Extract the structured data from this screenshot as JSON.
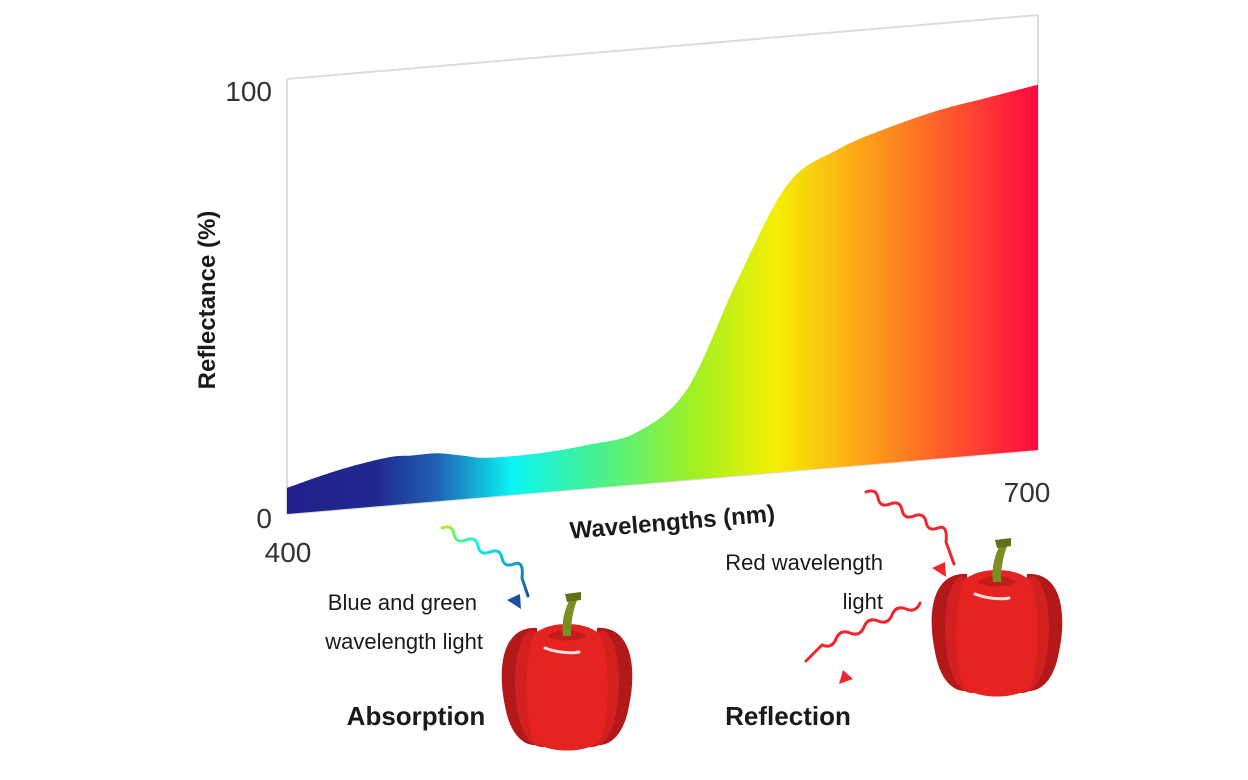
{
  "chart_data": {
    "type": "area",
    "xlabel": "Wavelengths (nm)",
    "ylabel": "Reflectance (%)",
    "xlim": [
      400,
      700
    ],
    "ylim": [
      0,
      100
    ],
    "x_ticks": [
      "400",
      "700"
    ],
    "y_ticks": [
      "0",
      "100"
    ],
    "grid": false,
    "series": [
      {
        "x": [
          400,
          420,
          440,
          450,
          460,
          470,
          480,
          500,
          520,
          540,
          560,
          580,
          600,
          620,
          640,
          660,
          680,
          700
        ],
        "values": [
          6,
          9,
          11,
          11,
          11,
          10,
          9,
          9,
          10,
          12,
          21,
          45,
          66,
          73,
          77,
          80,
          82,
          84
        ]
      }
    ],
    "fill_gradient": [
      {
        "offset": 0.0,
        "color": "#241f8e"
      },
      {
        "offset": 0.12,
        "color": "#1f2a8f"
      },
      {
        "offset": 0.2,
        "color": "#1f62b3"
      },
      {
        "offset": 0.3,
        "color": "#0cf5f2"
      },
      {
        "offset": 0.42,
        "color": "#4cf08a"
      },
      {
        "offset": 0.55,
        "color": "#a6f01f"
      },
      {
        "offset": 0.65,
        "color": "#f5ef06"
      },
      {
        "offset": 0.78,
        "color": "#fd9b1a"
      },
      {
        "offset": 1.0,
        "color": "#ff0842"
      }
    ]
  },
  "annotations": {
    "blue_green_line1": "Blue and green",
    "blue_green_line2": "wavelength light",
    "red_line1": "Red wavelength",
    "red_line2": "light",
    "absorption": "Absorption",
    "reflection": "Reflection"
  },
  "colors": {
    "frame": "#dcdcdc",
    "pepper_body": "#e52320",
    "pepper_dark": "#b4191a",
    "pepper_stem": "#7a8f23",
    "red_arrow": "#f0262d",
    "blue_arrow": "#1e4fa0"
  },
  "icons": {
    "left_pepper": "red-bell-pepper-icon",
    "right_pepper": "red-bell-pepper-icon",
    "incoming_light": "wavy-arrow-icon",
    "reflected_light": "wavy-arrow-icon"
  }
}
